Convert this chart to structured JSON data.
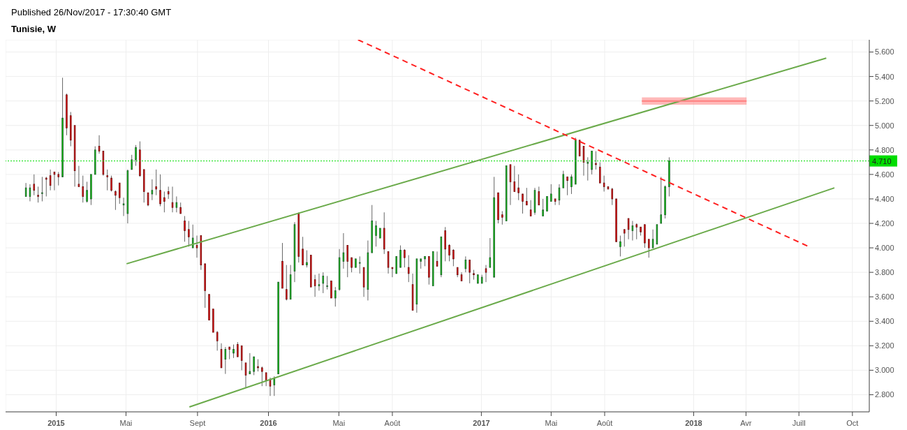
{
  "chart_data": {
    "type": "candlestick",
    "title": "Tunisie, W",
    "annotations": [
      "Published 26/Nov/2017 - 17:30:40 GMT"
    ],
    "grid": true,
    "xlim": [
      "2014-10-06",
      "2018-10-30"
    ],
    "xticks": [
      {
        "value": "2015-01-01",
        "label": "2015"
      },
      {
        "value": "2015-05-01",
        "label": "Mai"
      },
      {
        "value": "2015-09-01",
        "label": "Sept"
      },
      {
        "value": "2016-01-01",
        "label": "2016"
      },
      {
        "value": "2016-05-01",
        "label": "Mai"
      },
      {
        "value": "2016-08-01",
        "label": "Août"
      },
      {
        "value": "2017-01-01",
        "label": "2017"
      },
      {
        "value": "2017-05-01",
        "label": "Mai"
      },
      {
        "value": "2017-08-01",
        "label": "Août"
      },
      {
        "value": "2018-01-01",
        "label": "2018"
      },
      {
        "value": "2018-04-01",
        "label": "Avr"
      },
      {
        "value": "2018-07-01",
        "label": "Juill"
      },
      {
        "value": "2018-10-01",
        "label": "Oct"
      }
    ],
    "ylim": [
      2.66,
      5.7
    ],
    "yticks": [
      {
        "value": 2.8,
        "label": "2.800"
      },
      {
        "value": 3.0,
        "label": "3.000"
      },
      {
        "value": 3.2,
        "label": "3.200"
      },
      {
        "value": 3.4,
        "label": "3.400"
      },
      {
        "value": 3.6,
        "label": "3.600"
      },
      {
        "value": 3.8,
        "label": "3.800"
      },
      {
        "value": 4.0,
        "label": "4.000"
      },
      {
        "value": 4.2,
        "label": "4.200"
      },
      {
        "value": 4.4,
        "label": "4.400"
      },
      {
        "value": 4.6,
        "label": "4.600"
      },
      {
        "value": 4.8,
        "label": "4.800"
      },
      {
        "value": 5.0,
        "label": "5.000"
      },
      {
        "value": 5.2,
        "label": "5.200"
      },
      {
        "value": 5.4,
        "label": "5.400"
      },
      {
        "value": 5.6,
        "label": "5.600"
      }
    ],
    "ref_lines": [
      {
        "axis": "y",
        "value": 4.71,
        "label": "4.710",
        "color": "#00dd00",
        "line_style": "dotted"
      }
    ],
    "x": [
      "2014-11-10",
      "2014-11-17",
      "2014-11-24",
      "2014-12-01",
      "2014-12-08",
      "2014-12-15",
      "2014-12-22",
      "2014-12-29",
      "2015-01-05",
      "2015-01-12",
      "2015-01-19",
      "2015-01-26",
      "2015-02-02",
      "2015-02-09",
      "2015-02-16",
      "2015-02-23",
      "2015-03-02",
      "2015-03-09",
      "2015-03-16",
      "2015-03-23",
      "2015-03-30",
      "2015-04-06",
      "2015-04-13",
      "2015-04-20",
      "2015-04-27",
      "2015-05-04",
      "2015-05-11",
      "2015-05-18",
      "2015-05-25",
      "2015-06-01",
      "2015-06-08",
      "2015-06-15",
      "2015-06-22",
      "2015-06-29",
      "2015-07-06",
      "2015-07-13",
      "2015-07-20",
      "2015-07-27",
      "2015-08-03",
      "2015-08-10",
      "2015-08-17",
      "2015-08-24",
      "2015-08-31",
      "2015-09-07",
      "2015-09-14",
      "2015-09-21",
      "2015-09-28",
      "2015-10-05",
      "2015-10-12",
      "2015-10-19",
      "2015-10-26",
      "2015-11-02",
      "2015-11-09",
      "2015-11-16",
      "2015-11-23",
      "2015-11-30",
      "2015-12-07",
      "2015-12-14",
      "2015-12-21",
      "2015-12-28",
      "2016-01-04",
      "2016-01-11",
      "2016-01-18",
      "2016-01-25",
      "2016-02-01",
      "2016-02-08",
      "2016-02-15",
      "2016-02-22",
      "2016-02-29",
      "2016-03-07",
      "2016-03-14",
      "2016-03-21",
      "2016-03-28",
      "2016-04-04",
      "2016-04-11",
      "2016-04-18",
      "2016-04-25",
      "2016-05-02",
      "2016-05-09",
      "2016-05-16",
      "2016-05-23",
      "2016-05-30",
      "2016-06-06",
      "2016-06-13",
      "2016-06-20",
      "2016-06-27",
      "2016-07-04",
      "2016-07-11",
      "2016-07-18",
      "2016-07-25",
      "2016-08-01",
      "2016-08-08",
      "2016-08-15",
      "2016-08-22",
      "2016-08-29",
      "2016-09-05",
      "2016-09-12",
      "2016-09-19",
      "2016-09-26",
      "2016-10-03",
      "2016-10-10",
      "2016-10-17",
      "2016-10-24",
      "2016-10-31",
      "2016-11-07",
      "2016-11-14",
      "2016-11-21",
      "2016-11-28",
      "2016-12-05",
      "2016-12-12",
      "2016-12-19",
      "2016-12-26",
      "2017-01-02",
      "2017-01-09",
      "2017-01-16",
      "2017-01-23",
      "2017-01-30",
      "2017-02-06",
      "2017-02-13",
      "2017-02-20",
      "2017-02-27",
      "2017-03-06",
      "2017-03-13",
      "2017-03-20",
      "2017-03-27",
      "2017-04-03",
      "2017-04-10",
      "2017-04-17",
      "2017-04-24",
      "2017-05-01",
      "2017-05-08",
      "2017-05-15",
      "2017-05-22",
      "2017-05-29",
      "2017-06-05",
      "2017-06-12",
      "2017-06-19",
      "2017-06-26",
      "2017-07-03",
      "2017-07-10",
      "2017-07-17",
      "2017-07-24",
      "2017-07-31",
      "2017-08-07",
      "2017-08-14",
      "2017-08-21",
      "2017-08-28",
      "2017-09-04",
      "2017-09-11",
      "2017-09-18",
      "2017-09-25",
      "2017-10-02",
      "2017-10-09",
      "2017-10-16",
      "2017-10-23",
      "2017-10-30",
      "2017-11-06",
      "2017-11-13",
      "2017-11-20"
    ],
    "ohlc": [
      [
        4.42,
        4.53,
        4.42,
        4.49
      ],
      [
        4.42,
        4.52,
        4.38,
        4.49
      ],
      [
        4.52,
        4.6,
        4.43,
        4.47
      ],
      [
        4.43,
        4.5,
        4.37,
        4.42
      ],
      [
        4.45,
        4.58,
        4.38,
        4.45
      ],
      [
        4.57,
        4.58,
        4.42,
        4.56
      ],
      [
        4.59,
        4.64,
        4.47,
        4.51
      ],
      [
        4.62,
        4.62,
        4.47,
        4.6
      ],
      [
        4.6,
        4.62,
        4.51,
        4.58
      ],
      [
        4.58,
        5.39,
        4.58,
        5.06
      ],
      [
        5.25,
        5.26,
        4.92,
        4.98
      ],
      [
        5.08,
        5.11,
        4.83,
        4.88
      ],
      [
        5.0,
        5.0,
        4.5,
        4.63
      ],
      [
        4.52,
        4.67,
        4.5,
        4.5
      ],
      [
        4.5,
        4.59,
        4.37,
        4.42
      ],
      [
        4.38,
        4.54,
        4.37,
        4.47
      ],
      [
        4.4,
        4.6,
        4.35,
        4.6
      ],
      [
        4.6,
        4.83,
        4.6,
        4.8
      ],
      [
        4.83,
        4.92,
        4.77,
        4.79
      ],
      [
        4.79,
        4.79,
        4.59,
        4.6
      ],
      [
        4.59,
        4.64,
        4.47,
        4.58
      ],
      [
        4.57,
        4.59,
        4.46,
        4.47
      ],
      [
        4.46,
        4.47,
        4.31,
        4.43
      ],
      [
        4.53,
        4.53,
        4.36,
        4.41
      ],
      [
        4.35,
        4.41,
        4.26,
        4.36
      ],
      [
        4.28,
        4.64,
        4.2,
        4.63
      ],
      [
        4.64,
        4.76,
        4.64,
        4.72
      ],
      [
        4.72,
        4.84,
        4.67,
        4.82
      ],
      [
        4.8,
        4.87,
        4.58,
        4.59
      ],
      [
        4.64,
        4.64,
        4.37,
        4.46
      ],
      [
        4.45,
        4.45,
        4.34,
        4.35
      ],
      [
        4.44,
        4.56,
        4.39,
        4.47
      ],
      [
        4.5,
        4.64,
        4.43,
        4.48
      ],
      [
        4.47,
        4.6,
        4.34,
        4.36
      ],
      [
        4.41,
        4.46,
        4.29,
        4.38
      ],
      [
        4.46,
        4.5,
        4.4,
        4.44
      ],
      [
        4.37,
        4.5,
        4.29,
        4.33
      ],
      [
        4.33,
        4.42,
        4.29,
        4.37
      ],
      [
        4.33,
        4.37,
        4.28,
        4.28
      ],
      [
        4.22,
        4.26,
        4.05,
        4.14
      ],
      [
        4.15,
        4.22,
        4.01,
        4.09
      ],
      [
        4.0,
        4.19,
        4.0,
        4.08
      ],
      [
        4.02,
        4.1,
        3.92,
        4.0
      ],
      [
        4.1,
        4.1,
        3.82,
        3.86
      ],
      [
        3.87,
        3.87,
        3.51,
        3.65
      ],
      [
        3.62,
        3.62,
        3.41,
        3.41
      ],
      [
        3.5,
        3.5,
        3.31,
        3.31
      ],
      [
        3.31,
        3.32,
        3.16,
        3.24
      ],
      [
        3.17,
        3.22,
        3.02,
        3.02
      ],
      [
        3.09,
        3.19,
        2.97,
        3.17
      ],
      [
        3.19,
        3.19,
        3.09,
        3.17
      ],
      [
        3.14,
        3.21,
        3.1,
        3.17
      ],
      [
        3.21,
        3.23,
        3.11,
        3.11
      ],
      [
        3.2,
        3.2,
        3.0,
        3.08
      ],
      [
        3.06,
        3.06,
        2.86,
        2.96
      ],
      [
        2.97,
        3.14,
        2.97,
        2.99
      ],
      [
        2.99,
        3.11,
        2.96,
        3.11
      ],
      [
        3.03,
        3.09,
        2.99,
        3.02
      ],
      [
        3.02,
        3.03,
        2.87,
        2.99
      ],
      [
        2.98,
        2.98,
        2.87,
        2.92
      ],
      [
        2.92,
        2.94,
        2.79,
        2.87
      ],
      [
        2.88,
        2.95,
        2.79,
        2.93
      ],
      [
        2.97,
        3.72,
        2.97,
        3.72
      ],
      [
        3.89,
        4.04,
        3.67,
        3.67
      ],
      [
        3.66,
        3.86,
        3.57,
        3.58
      ],
      [
        3.58,
        3.86,
        3.58,
        3.78
      ],
      [
        3.81,
        4.21,
        3.72,
        4.19
      ],
      [
        4.28,
        4.29,
        3.88,
        3.93
      ],
      [
        3.99,
        4.09,
        3.86,
        3.86
      ],
      [
        3.86,
        3.98,
        3.84,
        3.88
      ],
      [
        3.94,
        3.94,
        3.68,
        3.68
      ],
      [
        3.74,
        3.78,
        3.6,
        3.69
      ],
      [
        3.69,
        3.79,
        3.65,
        3.7
      ],
      [
        3.71,
        3.8,
        3.63,
        3.77
      ],
      [
        3.69,
        3.77,
        3.66,
        3.69
      ],
      [
        3.73,
        3.73,
        3.59,
        3.59
      ],
      [
        3.59,
        3.68,
        3.52,
        3.65
      ],
      [
        3.66,
        3.99,
        3.65,
        3.92
      ],
      [
        3.89,
        4.12,
        3.83,
        3.96
      ],
      [
        4.02,
        4.02,
        3.76,
        3.89
      ],
      [
        3.92,
        3.92,
        3.8,
        3.84
      ],
      [
        3.84,
        3.91,
        3.84,
        3.91
      ],
      [
        3.88,
        3.93,
        3.79,
        3.88
      ],
      [
        3.84,
        3.84,
        3.6,
        3.68
      ],
      [
        3.66,
        4.06,
        3.57,
        3.96
      ],
      [
        3.96,
        4.35,
        3.96,
        4.22
      ],
      [
        4.1,
        4.22,
        4.01,
        4.18
      ],
      [
        4.08,
        4.16,
        4.08,
        4.16
      ],
      [
        4.16,
        4.29,
        3.95,
        3.99
      ],
      [
        3.97,
        3.97,
        3.79,
        3.84
      ],
      [
        3.84,
        3.84,
        3.76,
        3.83
      ],
      [
        3.79,
        3.93,
        3.79,
        3.93
      ],
      [
        3.84,
        4.02,
        3.84,
        3.98
      ],
      [
        3.98,
        3.99,
        3.84,
        3.92
      ],
      [
        3.84,
        3.94,
        3.72,
        3.79
      ],
      [
        3.7,
        3.79,
        3.49,
        3.49
      ],
      [
        3.54,
        3.91,
        3.47,
        3.91
      ],
      [
        3.89,
        3.91,
        3.83,
        3.91
      ],
      [
        3.91,
        3.93,
        3.85,
        3.93
      ],
      [
        3.93,
        3.93,
        3.7,
        3.76
      ],
      [
        3.69,
        3.97,
        3.69,
        3.97
      ],
      [
        3.89,
        3.97,
        3.85,
        3.85
      ],
      [
        3.78,
        4.09,
        3.76,
        4.09
      ],
      [
        4.14,
        4.17,
        3.89,
        3.99
      ],
      [
        4.02,
        4.03,
        3.89,
        3.94
      ],
      [
        3.98,
        3.99,
        3.85,
        3.91
      ],
      [
        3.84,
        3.84,
        3.76,
        3.78
      ],
      [
        3.78,
        3.8,
        3.73,
        3.73
      ],
      [
        3.83,
        3.93,
        3.8,
        3.9
      ],
      [
        3.9,
        3.9,
        3.71,
        3.8
      ],
      [
        3.79,
        3.82,
        3.74,
        3.78
      ],
      [
        3.71,
        3.78,
        3.71,
        3.78
      ],
      [
        3.71,
        3.78,
        3.71,
        3.76
      ],
      [
        3.83,
        3.86,
        3.72,
        3.8
      ],
      [
        3.84,
        4.08,
        3.84,
        3.92
      ],
      [
        3.76,
        4.58,
        3.76,
        4.41
      ],
      [
        4.45,
        4.45,
        4.2,
        4.23
      ],
      [
        4.27,
        4.3,
        4.19,
        4.25
      ],
      [
        4.22,
        4.67,
        4.22,
        4.67
      ],
      [
        4.68,
        4.68,
        4.35,
        4.54
      ],
      [
        4.54,
        4.67,
        4.46,
        4.46
      ],
      [
        4.49,
        4.6,
        4.39,
        4.45
      ],
      [
        4.44,
        4.44,
        4.28,
        4.38
      ],
      [
        4.38,
        4.49,
        4.35,
        4.35
      ],
      [
        4.31,
        4.39,
        4.26,
        4.26
      ],
      [
        4.29,
        4.49,
        4.27,
        4.47
      ],
      [
        4.46,
        4.5,
        4.35,
        4.35
      ],
      [
        4.26,
        4.4,
        4.26,
        4.31
      ],
      [
        4.3,
        4.42,
        4.3,
        4.42
      ],
      [
        4.38,
        4.52,
        4.38,
        4.44
      ],
      [
        4.4,
        4.4,
        4.35,
        4.38
      ],
      [
        4.39,
        4.52,
        4.35,
        4.49
      ],
      [
        4.49,
        4.63,
        4.49,
        4.6
      ],
      [
        4.58,
        4.58,
        4.43,
        4.55
      ],
      [
        4.5,
        4.6,
        4.44,
        4.58
      ],
      [
        4.52,
        4.9,
        4.52,
        4.88
      ],
      [
        4.88,
        4.88,
        4.75,
        4.75
      ],
      [
        4.83,
        4.83,
        4.59,
        4.7
      ],
      [
        4.69,
        4.74,
        4.55,
        4.7
      ],
      [
        4.64,
        4.79,
        4.6,
        4.79
      ],
      [
        4.69,
        4.79,
        4.64,
        4.68
      ],
      [
        4.66,
        4.7,
        4.53,
        4.53
      ],
      [
        4.53,
        4.59,
        4.46,
        4.5
      ],
      [
        4.5,
        4.5,
        4.48,
        4.48
      ],
      [
        4.48,
        4.49,
        4.35,
        4.4
      ],
      [
        4.4,
        4.4,
        4.05,
        4.05
      ],
      [
        4.01,
        4.1,
        3.93,
        4.05
      ],
      [
        4.15,
        4.15,
        4.01,
        4.12
      ],
      [
        4.24,
        4.24,
        4.07,
        4.15
      ],
      [
        4.14,
        4.22,
        4.06,
        4.18
      ],
      [
        4.19,
        4.2,
        4.07,
        4.17
      ],
      [
        4.17,
        4.17,
        4.1,
        4.13
      ],
      [
        4.19,
        4.19,
        4.0,
        4.04
      ],
      [
        4.07,
        4.07,
        3.92,
        4.0
      ],
      [
        4.0,
        4.15,
        4.0,
        4.07
      ],
      [
        4.03,
        4.19,
        4.03,
        4.19
      ],
      [
        4.2,
        4.58,
        4.2,
        4.27
      ],
      [
        4.27,
        4.51,
        4.24,
        4.5
      ],
      [
        4.5,
        4.74,
        4.42,
        4.71
      ]
    ],
    "series": [
      {
        "type": "line",
        "color": "#6aaa4a",
        "x": [
          "2015-05-02",
          "2018-08-17"
        ],
        "values": [
          3.87,
          5.55
        ]
      },
      {
        "type": "line",
        "color": "#6aaa4a",
        "x": [
          "2015-08-18",
          "2018-08-31"
        ],
        "values": [
          2.7,
          4.49
        ]
      },
      {
        "type": "line",
        "color": "#ff2020",
        "line_style": "dashed",
        "x": [
          "2016-06-03",
          "2018-07-18"
        ],
        "values": [
          5.7,
          4.01
        ]
      },
      {
        "type": "line",
        "color": "#ff8080",
        "x": [
          "2017-10-04",
          "2018-04-02"
        ],
        "values": [
          5.2,
          5.2
        ],
        "lower": [
          5.17,
          5.17
        ],
        "upper": [
          5.23,
          5.23
        ]
      }
    ]
  }
}
